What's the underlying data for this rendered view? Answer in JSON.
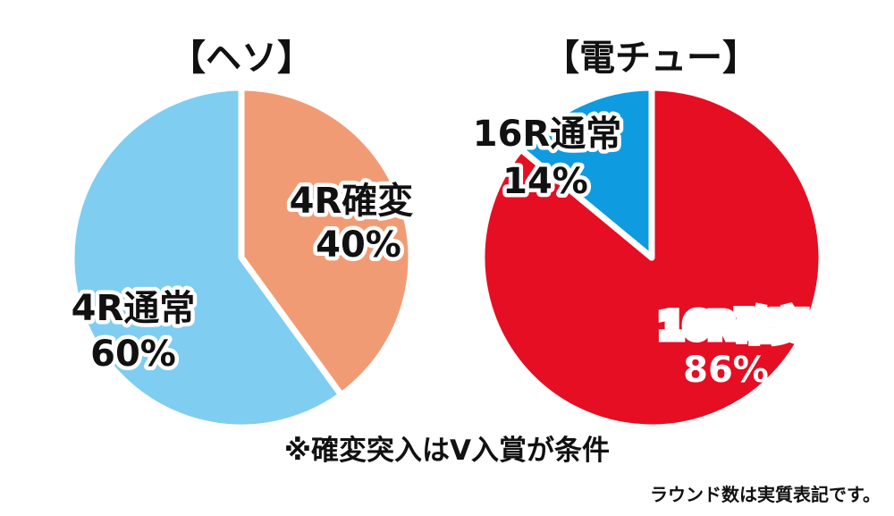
{
  "chart_data": [
    {
      "type": "pie",
      "title": "【ヘソ】",
      "slices": [
        {
          "label": "4R確変",
          "value": 40,
          "value_label": "40%",
          "color": "#f19b75"
        },
        {
          "label": "4R通常",
          "value": 60,
          "value_label": "60%",
          "color": "#7fcdf1"
        }
      ]
    },
    {
      "type": "pie",
      "title": "【電チュー】",
      "slices": [
        {
          "label": "16R確変",
          "value": 86,
          "value_label": "86%",
          "color": "#e60e22"
        },
        {
          "label": "16R通常",
          "value": 14,
          "value_label": "14%",
          "color": "#0f9be0"
        }
      ]
    }
  ],
  "note": "※確変突入はV入賞が条件",
  "footnote": "ラウンド数は実質表記です。"
}
